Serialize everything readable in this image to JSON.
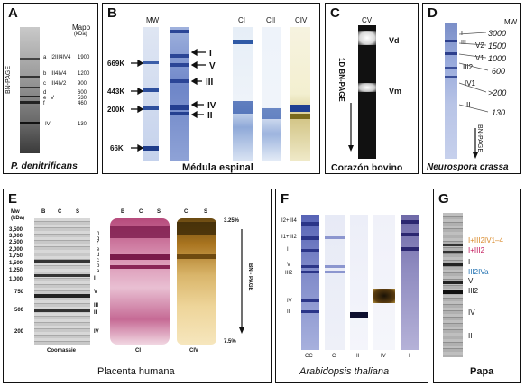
{
  "panels": {
    "A": {
      "letter": "A",
      "species": "P. denitrificans",
      "mapp_label": "Mapp",
      "mapp_unit": "(kDa)",
      "axis_label": "BN-PAGE",
      "bands": [
        {
          "letter": "a",
          "name": "I2III4IV4",
          "mass": "1900"
        },
        {
          "letter": "b",
          "name": "III4IV4",
          "mass": "1200"
        },
        {
          "letter": "c",
          "name": "III4IV2",
          "mass": "900"
        },
        {
          "letter": "d",
          "name": "",
          "mass": "600"
        },
        {
          "letter": "e",
          "name": "V",
          "mass": "530"
        },
        {
          "letter": "f",
          "name": "",
          "mass": "460"
        },
        {
          "letter": "",
          "name": "IV",
          "mass": "130"
        }
      ]
    },
    "B": {
      "letter": "B",
      "caption": "Médula espinal",
      "mw_label": "MW",
      "markers": [
        "669K",
        "443K",
        "200K",
        "66K"
      ],
      "complexes": [
        "I",
        "V",
        "III",
        "IV",
        "II"
      ],
      "lanes": [
        "CI",
        "CII",
        "CIV"
      ]
    },
    "C": {
      "letter": "C",
      "caption": "Corazón bovino",
      "lane": "CV",
      "axis_label": "1D BN-PAGE",
      "bands": [
        "Vd",
        "Vm"
      ]
    },
    "D": {
      "letter": "D",
      "caption": "Neurospora crassa",
      "mw_label": "MW",
      "masses": [
        "3000",
        "1500",
        "1000",
        "600",
        ">200",
        "130"
      ],
      "complexes": [
        "I",
        "III",
        "V2",
        "V1",
        "III2",
        "IV1",
        "II"
      ],
      "axis_label": "BN-PAGE"
    },
    "E": {
      "letter": "E",
      "caption": "Placenta humana",
      "mw_label": "Mw",
      "mw_unit": "(kDa)",
      "masses": [
        "3,500",
        "3,000",
        "2,500",
        "2,000",
        "1,750",
        "1,500",
        "1,250",
        "1,000",
        "750",
        "500",
        "200"
      ],
      "lane_heads": [
        "B",
        "C",
        "S"
      ],
      "gel_labels": [
        "Coomassie",
        "CI",
        "CIV"
      ],
      "band_letters": [
        "h",
        "g",
        "f",
        "e",
        "d",
        "c",
        "b",
        "a"
      ],
      "complexes": [
        "I",
        "V",
        "III",
        "II",
        "IV"
      ],
      "gradient_top": "3.25%",
      "gradient_bottom": "7.5%",
      "axis_label": "BN - PAGE"
    },
    "F": {
      "letter": "F",
      "caption": "Arabidopsis thaliana",
      "complexes": [
        "I2+III4",
        "I1+III2",
        "I",
        "V",
        "III2",
        "IV",
        "II"
      ],
      "lanes": [
        "CC",
        "C",
        "II",
        "IV",
        "I"
      ]
    },
    "G": {
      "letter": "G",
      "caption": "Papa",
      "labels": [
        {
          "text": "I+III2IV1–4",
          "color": "#d98a2b"
        },
        {
          "text": "I+III2",
          "color": "#c2185b"
        },
        {
          "text": "I",
          "color": "#111111"
        },
        {
          "text": "III2IVa",
          "color": "#1e6fb0"
        },
        {
          "text": "V",
          "color": "#111111"
        },
        {
          "text": "III2",
          "color": "#111111"
        },
        {
          "text": "IV",
          "color": "#111111"
        },
        {
          "text": "II",
          "color": "#111111"
        }
      ]
    }
  }
}
